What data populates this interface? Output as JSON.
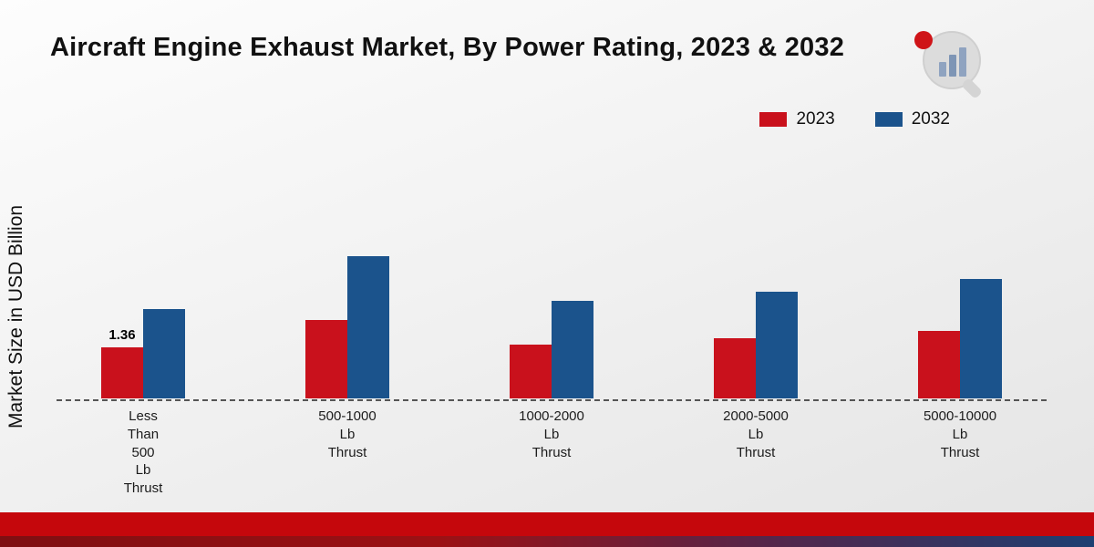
{
  "page": {
    "title": "Aircraft Engine Exhaust Market, By Power Rating, 2023 & 2032"
  },
  "ylabel": "Market Size in USD Billion",
  "legend": [
    {
      "label": "2023",
      "color": "#c9111c"
    },
    {
      "label": "2032",
      "color": "#1b538c"
    }
  ],
  "colors": {
    "series_2023": "#c9111c",
    "series_2032": "#1b538c",
    "footer_band": "#c5070c",
    "baseline": "#555555"
  },
  "chart_data": {
    "type": "bar",
    "title": "Aircraft Engine Exhaust Market, By Power Rating, 2023 & 2032",
    "xlabel": "",
    "ylabel": "Market Size in USD Billion",
    "ylim": [
      0,
      4
    ],
    "grid": false,
    "legend_position": "top-right",
    "baseline_style": "dashed",
    "categories": [
      [
        "Less",
        "Than",
        "500",
        "Lb",
        "Thrust"
      ],
      [
        "500-1000",
        "Lb",
        "Thrust"
      ],
      [
        "1000-2000",
        "Lb",
        "Thrust"
      ],
      [
        "2000-5000",
        "Lb",
        "Thrust"
      ],
      [
        "5000-10000",
        "Lb",
        "Thrust"
      ]
    ],
    "series": [
      {
        "name": "2023",
        "color": "#c9111c",
        "values": [
          1.36,
          2.1,
          1.45,
          1.6,
          1.8
        ]
      },
      {
        "name": "2032",
        "color": "#1b538c",
        "values": [
          2.4,
          3.8,
          2.6,
          2.85,
          3.2
        ]
      }
    ],
    "annotations": [
      {
        "series": 0,
        "category": 0,
        "text": "1.36"
      }
    ]
  }
}
